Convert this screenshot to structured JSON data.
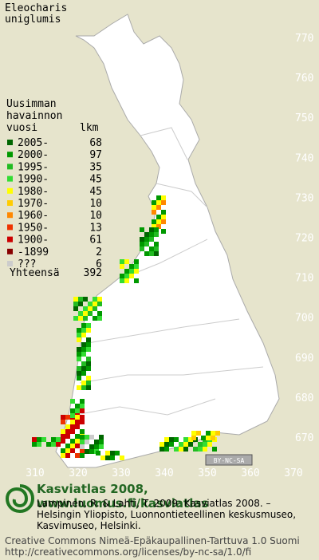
{
  "title": [
    "Eleocharis",
    "uniglumis"
  ],
  "legend": {
    "header": [
      "Uusimman",
      "havainnon",
      "vuosi"
    ],
    "count_header": "lkm",
    "rows": [
      {
        "label": "2005-",
        "count": 68,
        "color": "#006600"
      },
      {
        "label": "2000-",
        "count": 97,
        "color": "#009900"
      },
      {
        "label": "1995-",
        "count": 35,
        "color": "#22bb22"
      },
      {
        "label": "1990-",
        "count": 45,
        "color": "#33dd33"
      },
      {
        "label": "1980-",
        "count": 45,
        "color": "#ffff00"
      },
      {
        "label": "1970-",
        "count": 10,
        "color": "#ffcc00"
      },
      {
        "label": "1960-",
        "count": 10,
        "color": "#ff8800"
      },
      {
        "label": "1950-",
        "count": 13,
        "color": "#ee3300"
      },
      {
        "label": "1900-",
        "count": 61,
        "color": "#cc0000"
      },
      {
        "label": "-1899",
        "count": 2,
        "color": "#880000"
      },
      {
        "label": "???",
        "count": 6,
        "color": "#cccccc"
      }
    ],
    "total_label": "Yhteensä",
    "total": 392
  },
  "map": {
    "yticks": [
      770,
      760,
      750,
      740,
      730,
      720,
      710,
      700,
      690,
      680,
      670
    ],
    "xticks": [
      310,
      320,
      330,
      340,
      350,
      360,
      370
    ],
    "license_badge": "BY-NC-SA"
  },
  "footer": {
    "brand": "Kasviatlas 2008, www.luomus.fi/kasviatlas",
    "citation": [
      "Lampinen, R. & Lahti, T. 2009: Kasviatlas 2008. –",
      "Helsingin Yliopisto, Luonnontieteellinen keskusmuseo,",
      "Kasvimuseo, Helsinki."
    ],
    "license": [
      "Creative Commons Nimeä-Epäkaupallinen-Tarttuva 1.0 Suomi",
      "http://creativecommons.org/licenses/by-nc-sa/1.0/fi"
    ]
  }
}
